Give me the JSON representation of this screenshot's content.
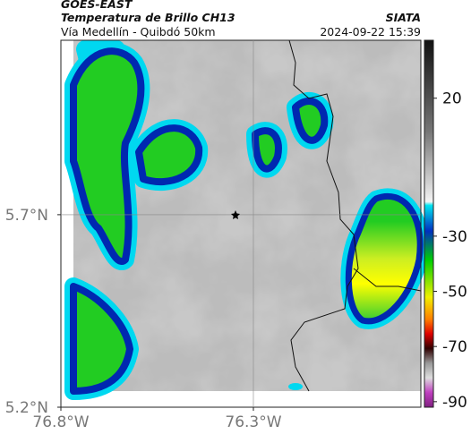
{
  "header": {
    "source": "GOES-EAST",
    "product": "Temperatura de Brillo CH13",
    "route": "Vía Medellín - Quibdó 50km",
    "agency": "SIATA",
    "time": "2024-09-22 15:39"
  },
  "map": {
    "xlim": [
      -76.8,
      -75.865
    ],
    "ylim": [
      5.2,
      6.153
    ],
    "xticks": [
      {
        "value": -76.8,
        "label": "76.8°W"
      },
      {
        "value": -76.3,
        "label": "76.3°W"
      }
    ],
    "yticks": [
      {
        "value": 5.2,
        "label": "5.2°N"
      },
      {
        "value": 5.7,
        "label": "5.7°N"
      }
    ]
  },
  "colorbar": {
    "range": [
      41,
      -92
    ],
    "ticks": [
      20,
      -30,
      -50,
      -70,
      -90
    ]
  }
}
